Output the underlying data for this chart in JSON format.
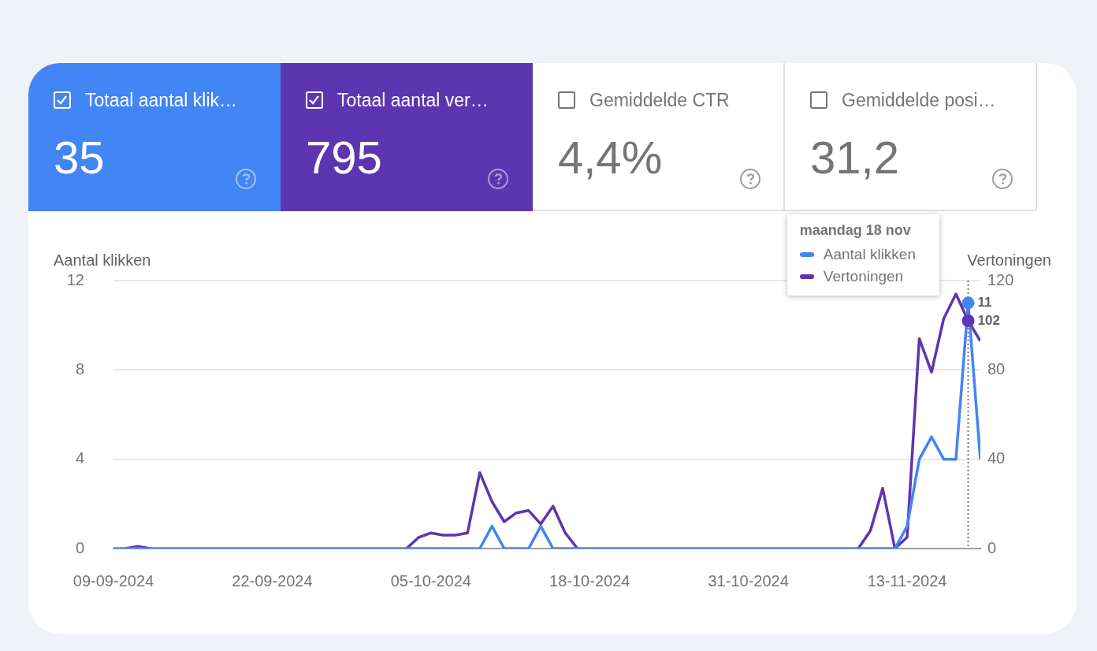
{
  "chart_data": [
    {
      "type": "other",
      "annotations": [
        "Totaal aantal klik…",
        "35",
        "Totaal aantal ver…",
        "795",
        "Gemiddelde CTR",
        "4,4%",
        "Gemiddelde posi…",
        "31,2"
      ]
    },
    {
      "type": "line",
      "x": [
        "2024-09-09",
        "2024-09-10",
        "2024-09-11",
        "2024-09-12",
        "2024-09-13",
        "2024-09-14",
        "2024-09-15",
        "2024-09-16",
        "2024-09-17",
        "2024-09-18",
        "2024-09-19",
        "2024-09-20",
        "2024-09-21",
        "2024-09-22",
        "2024-09-23",
        "2024-09-24",
        "2024-09-25",
        "2024-09-26",
        "2024-09-27",
        "2024-09-28",
        "2024-09-29",
        "2024-09-30",
        "2024-10-01",
        "2024-10-02",
        "2024-10-03",
        "2024-10-04",
        "2024-10-05",
        "2024-10-06",
        "2024-10-07",
        "2024-10-08",
        "2024-10-09",
        "2024-10-10",
        "2024-10-11",
        "2024-10-12",
        "2024-10-13",
        "2024-10-14",
        "2024-10-15",
        "2024-10-16",
        "2024-10-17",
        "2024-10-18",
        "2024-10-19",
        "2024-10-20",
        "2024-10-21",
        "2024-10-22",
        "2024-10-23",
        "2024-10-24",
        "2024-10-25",
        "2024-10-26",
        "2024-10-27",
        "2024-10-28",
        "2024-10-29",
        "2024-10-30",
        "2024-10-31",
        "2024-11-01",
        "2024-11-02",
        "2024-11-03",
        "2024-11-04",
        "2024-11-05",
        "2024-11-06",
        "2024-11-07",
        "2024-11-08",
        "2024-11-09",
        "2024-11-10",
        "2024-11-11",
        "2024-11-12",
        "2024-11-13",
        "2024-11-14",
        "2024-11-15",
        "2024-11-16",
        "2024-11-17",
        "2024-11-18",
        "2024-11-19"
      ],
      "series": [
        {
          "name": "Aantal klikken",
          "color": "#4285f4",
          "values": [
            0,
            0,
            0,
            0,
            0,
            0,
            0,
            0,
            0,
            0,
            0,
            0,
            0,
            0,
            0,
            0,
            0,
            0,
            0,
            0,
            0,
            0,
            0,
            0,
            0,
            0,
            0,
            0,
            0,
            0,
            0,
            1,
            0,
            0,
            0,
            1,
            0,
            0,
            0,
            0,
            0,
            0,
            0,
            0,
            0,
            0,
            0,
            0,
            0,
            0,
            0,
            0,
            0,
            0,
            0,
            0,
            0,
            0,
            0,
            0,
            0,
            0,
            0,
            0,
            0,
            1,
            4,
            5,
            4,
            4,
            11,
            4
          ],
          "value_labels": [
            null,
            null,
            null,
            null,
            null,
            null,
            null,
            null,
            null,
            null,
            null,
            null,
            null,
            null,
            null,
            null,
            null,
            null,
            null,
            null,
            null,
            null,
            null,
            null,
            null,
            null,
            null,
            null,
            null,
            null,
            null,
            null,
            null,
            null,
            null,
            null,
            null,
            null,
            null,
            null,
            null,
            null,
            null,
            null,
            null,
            null,
            null,
            null,
            null,
            null,
            null,
            null,
            null,
            null,
            null,
            null,
            null,
            null,
            null,
            null,
            null,
            null,
            null,
            null,
            null,
            null,
            null,
            null,
            null,
            null,
            "11",
            null
          ]
        },
        {
          "name": "Vertoningen",
          "color": "#5e35b1",
          "axis": "y2",
          "values": [
            null,
            0,
            1,
            0,
            null,
            null,
            null,
            null,
            null,
            null,
            null,
            null,
            null,
            null,
            null,
            null,
            null,
            null,
            null,
            null,
            null,
            null,
            null,
            null,
            0,
            5,
            7,
            6,
            6,
            7,
            34,
            21,
            12,
            16,
            17,
            11,
            19,
            7,
            0,
            null,
            null,
            null,
            null,
            null,
            null,
            null,
            null,
            null,
            null,
            null,
            null,
            null,
            null,
            null,
            null,
            null,
            null,
            null,
            null,
            null,
            null,
            0,
            8,
            27,
            0,
            5,
            94,
            79,
            103,
            114,
            102,
            93
          ],
          "value_labels": [
            null,
            null,
            null,
            null,
            null,
            null,
            null,
            null,
            null,
            null,
            null,
            null,
            null,
            null,
            null,
            null,
            null,
            null,
            null,
            null,
            null,
            null,
            null,
            null,
            null,
            null,
            null,
            null,
            null,
            null,
            null,
            null,
            null,
            null,
            null,
            null,
            null,
            null,
            null,
            null,
            null,
            null,
            null,
            null,
            null,
            null,
            null,
            null,
            null,
            null,
            null,
            null,
            null,
            null,
            null,
            null,
            null,
            null,
            null,
            null,
            null,
            null,
            null,
            null,
            null,
            null,
            null,
            null,
            null,
            null,
            "102",
            null
          ]
        }
      ],
      "ylabel": "Aantal klikken",
      "y2label": "Vertoningen",
      "xlim": [
        "2024-09-09",
        "2024-11-19"
      ],
      "xticks": [
        {
          "value": "2024-09-09",
          "label": "09-09-2024"
        },
        {
          "value": "2024-09-22",
          "label": "22-09-2024"
        },
        {
          "value": "2024-10-05",
          "label": "05-10-2024"
        },
        {
          "value": "2024-10-18",
          "label": "18-10-2024"
        },
        {
          "value": "2024-10-31",
          "label": "31-10-2024"
        },
        {
          "value": "2024-11-13",
          "label": "13-11-2024"
        }
      ],
      "ylim": [
        0,
        12
      ],
      "yticks": [
        0,
        4,
        8,
        12
      ],
      "y2lim": [
        0,
        120
      ],
      "y2ticks": [
        0,
        40,
        80,
        120
      ],
      "grid": "y",
      "marker": "none",
      "legend": "top right",
      "ref_lines": [
        {
          "axis": "x",
          "value": "2024-11-18",
          "color": "#757575",
          "line_style": "dotted"
        }
      ],
      "annotations": [
        "maandag 18 nov"
      ]
    }
  ]
}
